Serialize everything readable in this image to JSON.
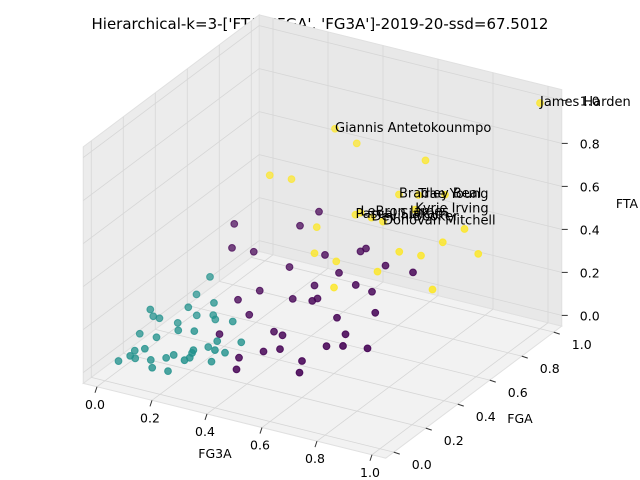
{
  "chart_data": {
    "type": "scatter3d",
    "title": "Hierarchical-k=3-['FTA', 'FGA', 'FG3A']-2019-20-ssd=67.5012",
    "x_label": "FG3A",
    "y_label": "FGA",
    "z_label": "FTA",
    "xlim": [
      -0.05,
      1.05
    ],
    "ylim": [
      -0.05,
      1.05
    ],
    "zlim": [
      -0.05,
      1.05
    ],
    "xticks": [
      {
        "value": 0,
        "label": "0.0"
      },
      0.2,
      0.4,
      0.6,
      0.8,
      {
        "value": 1,
        "label": "1.0"
      }
    ],
    "yticks": [
      {
        "value": 0,
        "label": "0.0"
      },
      0.2,
      0.4,
      0.6,
      0.8,
      {
        "value": 1,
        "label": "1.0"
      }
    ],
    "zticks": [
      {
        "value": 0,
        "label": "0.0"
      },
      0.2,
      0.4,
      0.6,
      0.8,
      {
        "value": 1,
        "label": "1.0"
      }
    ],
    "grid": true,
    "series": [
      {
        "color": "#440154",
        "x": [
          0.3,
          0.35,
          0.4,
          0.45,
          0.5,
          0.55,
          0.6,
          0.65,
          0.7,
          0.75,
          0.38,
          0.42,
          0.48,
          0.52,
          0.58,
          0.62,
          0.68,
          0.72,
          0.33,
          0.44,
          0.5,
          0.56,
          0.64,
          0.8,
          0.78,
          0.28,
          0.36,
          0.46,
          0.54,
          0.66,
          0.25,
          0.2,
          0.15,
          0.4,
          0.6,
          0.7
        ],
        "y": [
          0.2,
          0.3,
          0.15,
          0.4,
          0.25,
          0.35,
          0.2,
          0.45,
          0.3,
          0.4,
          0.5,
          0.1,
          0.55,
          0.2,
          0.6,
          0.15,
          0.5,
          0.25,
          0.4,
          0.3,
          0.45,
          0.5,
          0.35,
          0.55,
          0.3,
          0.35,
          0.6,
          0.2,
          0.4,
          0.25,
          0.5,
          0.45,
          0.55,
          0.65,
          0.6,
          0.55
        ],
        "z": [
          0.15,
          0.2,
          0.1,
          0.25,
          0.18,
          0.3,
          0.12,
          0.35,
          0.22,
          0.28,
          0.32,
          0.08,
          0.38,
          0.15,
          0.4,
          0.1,
          0.3,
          0.2,
          0.25,
          0.15,
          0.3,
          0.35,
          0.25,
          0.4,
          0.18,
          0.22,
          0.45,
          0.12,
          0.28,
          0.18,
          0.35,
          0.38,
          0.42,
          0.5,
          0.42,
          0.4
        ]
      },
      {
        "color": "#21918c",
        "x": [
          0.02,
          0.05,
          0.08,
          0.1,
          0.12,
          0.15,
          0.18,
          0.2,
          0.22,
          0.25,
          0.28,
          0.3,
          0.03,
          0.06,
          0.09,
          0.11,
          0.14,
          0.17,
          0.19,
          0.23,
          0.26,
          0.29,
          0.32,
          0.04,
          0.07,
          0.13,
          0.16,
          0.21,
          0.24,
          0.27,
          0.01,
          0.1,
          0.18,
          0.35,
          0.33,
          0.12
        ],
        "y": [
          0.05,
          0.1,
          0.02,
          0.15,
          0.08,
          0.2,
          0.12,
          0.05,
          0.18,
          0.1,
          0.22,
          0.15,
          0.25,
          0.18,
          0.3,
          0.06,
          0.28,
          0.09,
          0.35,
          0.25,
          0.05,
          0.3,
          0.2,
          0.12,
          0.22,
          0.35,
          0.02,
          0.32,
          0.14,
          0.08,
          0.2,
          0.4,
          0.38,
          0.25,
          0.12,
          0.45
        ],
        "z": [
          0.02,
          0.05,
          0.08,
          0.1,
          0.04,
          0.12,
          0.06,
          0.03,
          0.15,
          0.08,
          0.1,
          0.05,
          0.12,
          0.2,
          0.08,
          0.1,
          0.18,
          0.06,
          0.12,
          0.04,
          0.1,
          0.15,
          0.07,
          0.0,
          0.14,
          0.1,
          0.05,
          0.2,
          0.09,
          0.12,
          0.06,
          0.16,
          0.08,
          0.1,
          0.13,
          0.22
        ]
      },
      {
        "color": "#fde725",
        "x": [
          1,
          0.4,
          0.65,
          0.72,
          0.75,
          0.58,
          0.55,
          0.62,
          0.65,
          0.5,
          0.45,
          0.55,
          0.7,
          0.8,
          0.85,
          0.75,
          0.6,
          0.9,
          0.8,
          0.25,
          0.3,
          0.9,
          0.95,
          0.7,
          0.45
        ],
        "y": [
          1,
          0.75,
          0.72,
          0.72,
          0.65,
          0.6,
          0.62,
          0.6,
          0.62,
          0.45,
          0.55,
          0.5,
          0.5,
          0.6,
          0.65,
          0.55,
          0.4,
          0.7,
          0.75,
          0.6,
          0.65,
          0.5,
          0.7,
          0.8,
          0.8
        ],
        "z": [
          1,
          0.83,
          0.62,
          0.64,
          0.62,
          0.58,
          0.55,
          0.57,
          0.55,
          0.45,
          0.5,
          0.4,
          0.4,
          0.45,
          0.5,
          0.48,
          0.35,
          0.55,
          0.65,
          0.65,
          0.62,
          0.38,
          0.45,
          0.75,
          0.75
        ]
      }
    ],
    "annotations": [
      {
        "text": "James Harden",
        "x": 1,
        "y": 1,
        "z": 1
      },
      {
        "text": "Giannis Antetokounmpo",
        "x": 0.4,
        "y": 0.75,
        "z": 0.83
      },
      {
        "text": "Bradley Beal",
        "x": 0.65,
        "y": 0.72,
        "z": 0.62
      },
      {
        "text": "Trae Young",
        "x": 0.72,
        "y": 0.72,
        "z": 0.64
      },
      {
        "text": "Kyrie Irving",
        "x": 0.75,
        "y": 0.65,
        "z": 0.62
      },
      {
        "text": "LeBron James",
        "x": 0.58,
        "y": 0.6,
        "z": 0.58
      },
      {
        "text": "Pascal Siakam",
        "x": 0.55,
        "y": 0.62,
        "z": 0.55
      },
      {
        "text": "Devin Booker",
        "x": 0.62,
        "y": 0.6,
        "z": 0.57
      },
      {
        "text": "Donovan Mitchell",
        "x": 0.65,
        "y": 0.62,
        "z": 0.55
      }
    ]
  }
}
